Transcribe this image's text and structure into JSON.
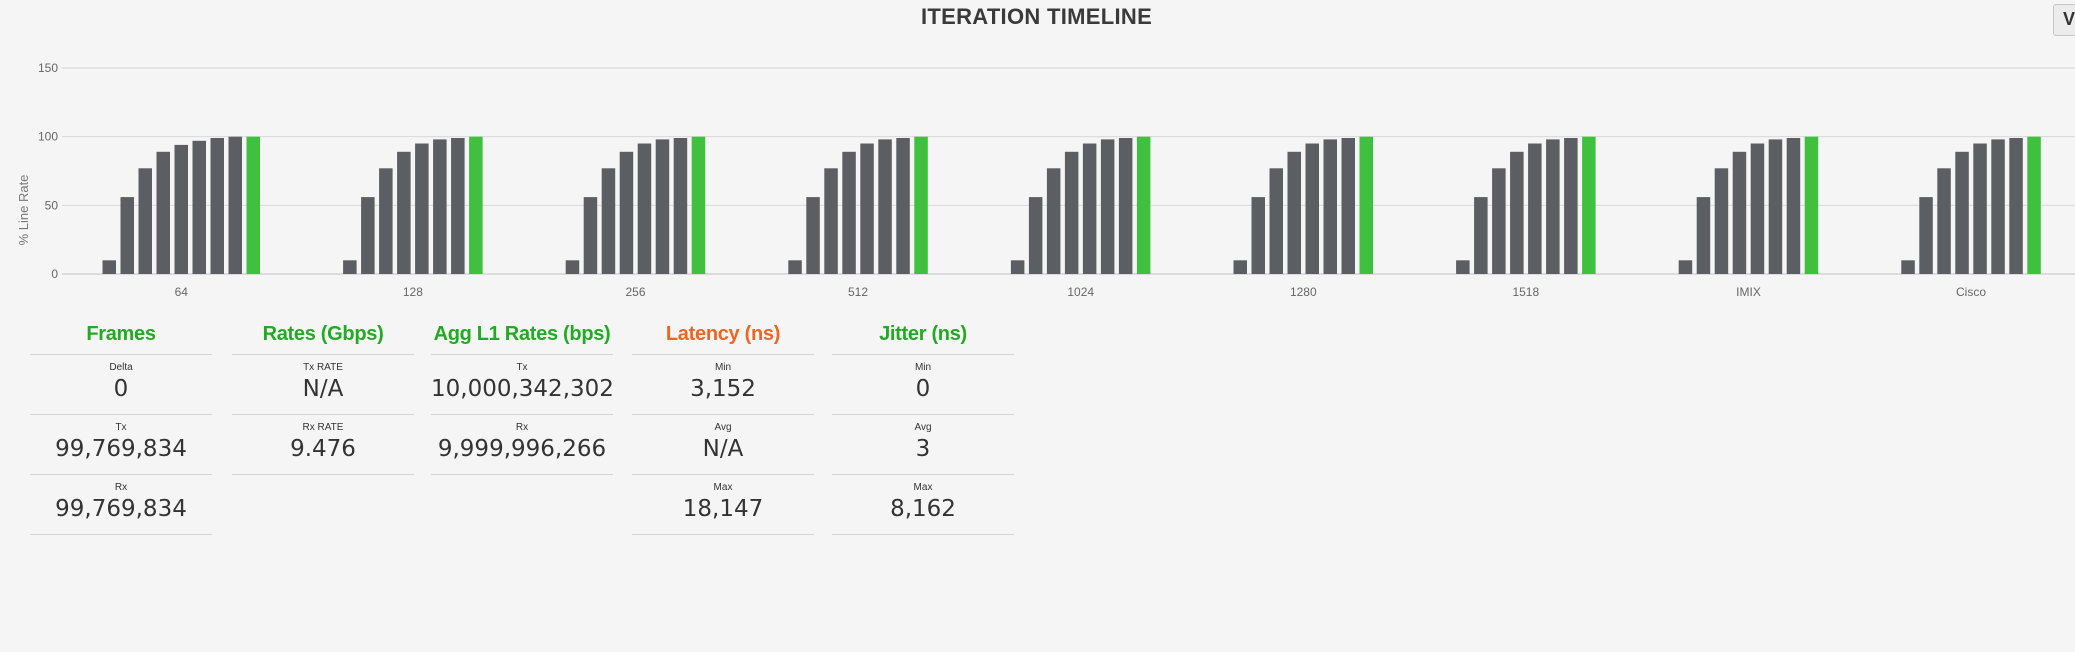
{
  "title": "ITERATION TIMELINE",
  "view_button": {
    "label": "V"
  },
  "chart_data": {
    "type": "bar",
    "ylabel": "% Line Rate",
    "ylim": [
      0,
      150
    ],
    "yticks": [
      0,
      50,
      100,
      150
    ],
    "categories": [
      "64",
      "128",
      "256",
      "512",
      "1024",
      "1280",
      "1518",
      "IMIX",
      "Cisco"
    ],
    "groups": [
      {
        "category": "64",
        "values": [
          10,
          56,
          77,
          89,
          94,
          97,
          99,
          100,
          100
        ],
        "final_highlight": true
      },
      {
        "category": "128",
        "values": [
          10,
          56,
          77,
          89,
          95,
          98,
          99,
          100
        ],
        "final_highlight": true
      },
      {
        "category": "256",
        "values": [
          10,
          56,
          77,
          89,
          95,
          98,
          99,
          100
        ],
        "final_highlight": true
      },
      {
        "category": "512",
        "values": [
          10,
          56,
          77,
          89,
          95,
          98,
          99,
          100
        ],
        "final_highlight": true
      },
      {
        "category": "1024",
        "values": [
          10,
          56,
          77,
          89,
          95,
          98,
          99,
          100
        ],
        "final_highlight": true
      },
      {
        "category": "1280",
        "values": [
          10,
          56,
          77,
          89,
          95,
          98,
          99,
          100
        ],
        "final_highlight": true
      },
      {
        "category": "1518",
        "values": [
          10,
          56,
          77,
          89,
          95,
          98,
          99,
          100
        ],
        "final_highlight": true
      },
      {
        "category": "IMIX",
        "values": [
          10,
          56,
          77,
          89,
          95,
          98,
          99,
          100
        ],
        "final_highlight": true
      },
      {
        "category": "Cisco",
        "values": [
          10,
          56,
          77,
          89,
          95,
          98,
          99,
          100
        ],
        "final_highlight": true
      }
    ],
    "colors": {
      "bar": "#5b5e62",
      "final": "#3fc03f",
      "grid": "#d8d8d8"
    },
    "grid": true,
    "legend": "none"
  },
  "panels": {
    "frames": {
      "title": "Frames",
      "color": "#22aa22",
      "stats": [
        {
          "label": "Delta",
          "value": "0"
        },
        {
          "label": "Tx",
          "value": "99,769,834"
        },
        {
          "label": "Rx",
          "value": "99,769,834"
        }
      ]
    },
    "rates": {
      "title": "Rates (Gbps)",
      "color": "#22aa22",
      "stats": [
        {
          "label": "Tx RATE",
          "value": "N/A"
        },
        {
          "label": "Rx RATE",
          "value": "9.476"
        }
      ]
    },
    "agg": {
      "title": "Agg L1 Rates (bps)",
      "color": "#22aa22",
      "stats": [
        {
          "label": "Tx",
          "value": "10,000,342,302"
        },
        {
          "label": "Rx",
          "value": "9,999,996,266"
        }
      ]
    },
    "latency": {
      "title": "Latency (ns)",
      "color": "#ee6622",
      "stats": [
        {
          "label": "Min",
          "value": "3,152"
        },
        {
          "label": "Avg",
          "value": "N/A"
        },
        {
          "label": "Max",
          "value": "18,147"
        }
      ]
    },
    "jitter": {
      "title": "Jitter (ns)",
      "color": "#22aa22",
      "stats": [
        {
          "label": "Min",
          "value": "0"
        },
        {
          "label": "Avg",
          "value": "3"
        },
        {
          "label": "Max",
          "value": "8,162"
        }
      ]
    }
  }
}
